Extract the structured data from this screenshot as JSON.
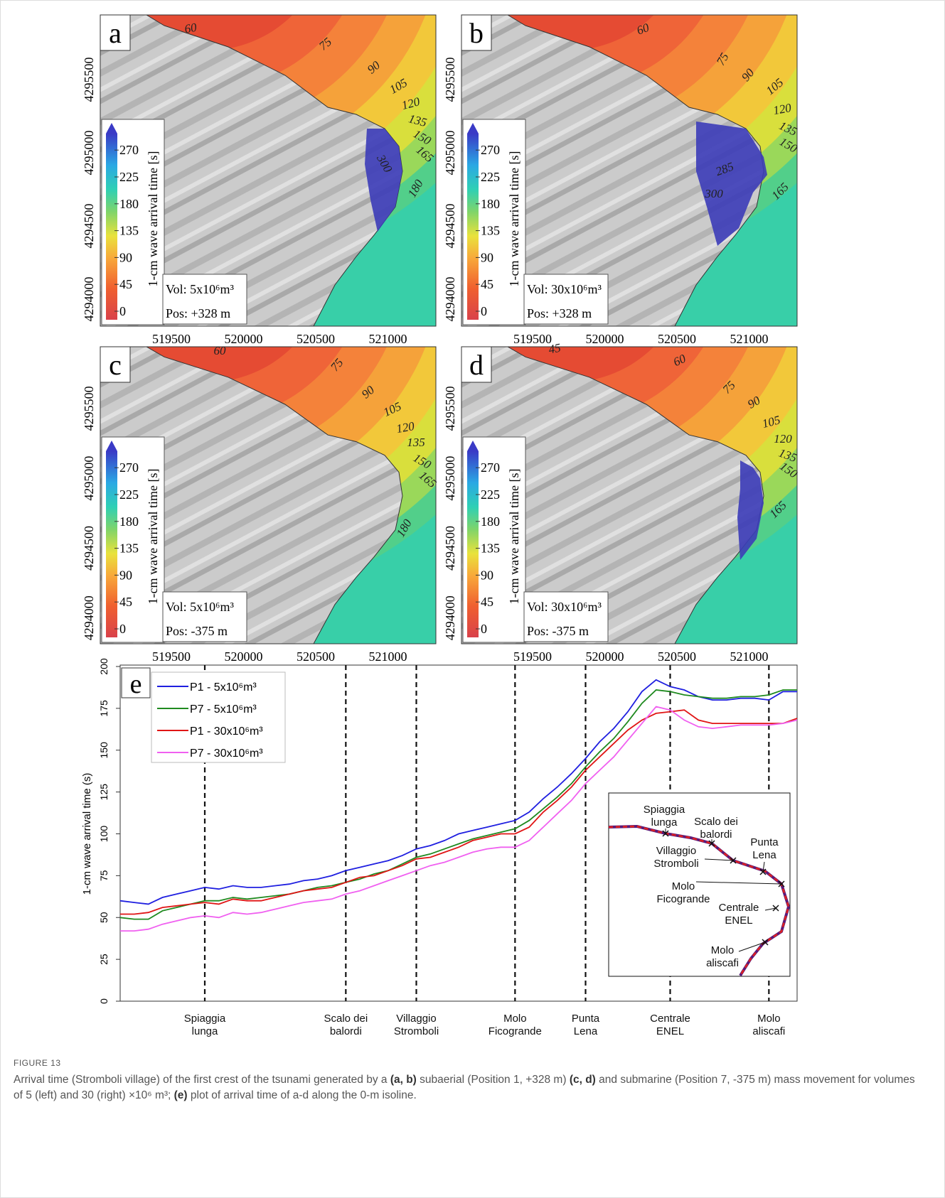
{
  "figure": {
    "maps": [
      {
        "letter": "a",
        "vol": "Vol: 5x10⁶m³",
        "pos": "Pos: +328 m",
        "contours": [
          "60",
          "75",
          "90",
          "105",
          "120",
          "135",
          "150",
          "165",
          "300",
          "180"
        ]
      },
      {
        "letter": "b",
        "vol": "Vol: 30x10⁶m³",
        "pos": "Pos: +328 m",
        "contours": [
          "60",
          "75",
          "90",
          "105",
          "120",
          "135",
          "150",
          "285",
          "300",
          "165"
        ]
      },
      {
        "letter": "c",
        "vol": "Vol: 5x10⁶m³",
        "pos": "Pos: -375 m",
        "contours": [
          "60",
          "75",
          "90",
          "105",
          "120",
          "135",
          "150",
          "165",
          "180"
        ]
      },
      {
        "letter": "d",
        "vol": "Vol: 30x10⁶m³",
        "pos": "Pos: -375 m",
        "contours": [
          "45",
          "60",
          "75",
          "90",
          "105",
          "120",
          "135",
          "150",
          "165"
        ]
      }
    ],
    "map_xticks": [
      "519500",
      "520000",
      "520500",
      "521000"
    ],
    "map_yticks": [
      "4294000",
      "4294500",
      "4295000",
      "4295500"
    ],
    "colorbar": {
      "label": "1-cm wave arrival time [s]",
      "ticks": [
        "0",
        "45",
        "90",
        "135",
        "180",
        "225",
        "270"
      ]
    }
  },
  "chart_data": {
    "type": "line",
    "panel": "e",
    "ylabel": "1-cm wave arrival time (s)",
    "categories": [
      null,
      null,
      null,
      null,
      null,
      null,
      "Spiaggia\nlunga",
      null,
      null,
      null,
      null,
      null,
      null,
      null,
      null,
      null,
      "Scalo dei\nbalordi",
      null,
      null,
      null,
      null,
      "Villaggio\nStromboli",
      null,
      null,
      null,
      null,
      null,
      null,
      "Molo\nFicogrande",
      null,
      null,
      null,
      null,
      "Punta\nLena",
      null,
      null,
      null,
      null,
      null,
      "Centrale\nENEL",
      null,
      null,
      null,
      null,
      null,
      null,
      "Molo\naliscafi",
      null,
      null
    ],
    "series": [
      {
        "name": "P1 - 5x10⁶m³",
        "color": "#1f1fe0",
        "values": [
          60,
          59,
          58,
          62,
          64,
          66,
          68,
          67,
          69,
          68,
          68,
          69,
          70,
          72,
          73,
          75,
          78,
          80,
          82,
          84,
          87,
          91,
          93,
          96,
          100,
          102,
          104,
          106,
          108,
          113,
          121,
          128,
          136,
          145,
          155,
          163,
          173,
          185,
          192,
          188,
          186,
          182,
          180,
          180,
          181,
          181,
          180,
          185,
          185
        ]
      },
      {
        "name": "P7 - 5x10⁶m³",
        "color": "#1f8a1f",
        "values": [
          50,
          49,
          49,
          54,
          56,
          58,
          60,
          60,
          62,
          61,
          62,
          63,
          64,
          66,
          68,
          69,
          71,
          73,
          76,
          78,
          82,
          86,
          88,
          91,
          94,
          97,
          99,
          101,
          103,
          108,
          115,
          122,
          130,
          140,
          149,
          157,
          167,
          178,
          186,
          185,
          183,
          182,
          181,
          181,
          182,
          182,
          183,
          186,
          186
        ]
      },
      {
        "name": "P1 - 30x10⁶m³",
        "color": "#e01515",
        "values": [
          52,
          52,
          53,
          56,
          57,
          58,
          59,
          58,
          61,
          60,
          60,
          62,
          64,
          66,
          67,
          68,
          71,
          74,
          75,
          78,
          81,
          85,
          86,
          89,
          92,
          96,
          98,
          100,
          100,
          104,
          113,
          120,
          128,
          138,
          146,
          154,
          162,
          168,
          172,
          173,
          174,
          168,
          166,
          166,
          166,
          166,
          166,
          166,
          169
        ]
      },
      {
        "name": "P7 - 30x10⁶m³",
        "color": "#f060f0",
        "values": [
          42,
          42,
          43,
          46,
          48,
          50,
          51,
          50,
          53,
          52,
          53,
          55,
          57,
          59,
          60,
          61,
          64,
          66,
          69,
          72,
          75,
          78,
          81,
          83,
          86,
          89,
          91,
          92,
          92,
          96,
          104,
          112,
          120,
          130,
          138,
          146,
          156,
          166,
          176,
          174,
          168,
          164,
          163,
          164,
          165,
          165,
          165,
          166,
          168
        ]
      }
    ],
    "ylim": [
      0,
      200
    ],
    "yticks": [
      0,
      25,
      50,
      75,
      100,
      125,
      150,
      175,
      200
    ],
    "legend": "upper left",
    "inset_labels": [
      "Spiaggia\nlunga",
      "Scalo dei\nbalordi",
      "Villaggio\nStromboli",
      "Punta\nLena",
      "Molo\nFicogrande",
      "Centrale\nENEL",
      "Molo\naliscafi"
    ]
  },
  "caption": {
    "label": "FIGURE 13",
    "parts": [
      "Arrival time (Stromboli village) of the first crest of the tsunami generated by a ",
      "(a, b)",
      " subaerial (Position 1, +328 m) ",
      "(c, d)",
      " and submarine (Position 7, -375 m) mass movement for volumes of 5 (left) and 30 (right) ×10⁶ m³; ",
      "(e)",
      " plot of arrival time of a-d along the 0-m isoline."
    ]
  }
}
